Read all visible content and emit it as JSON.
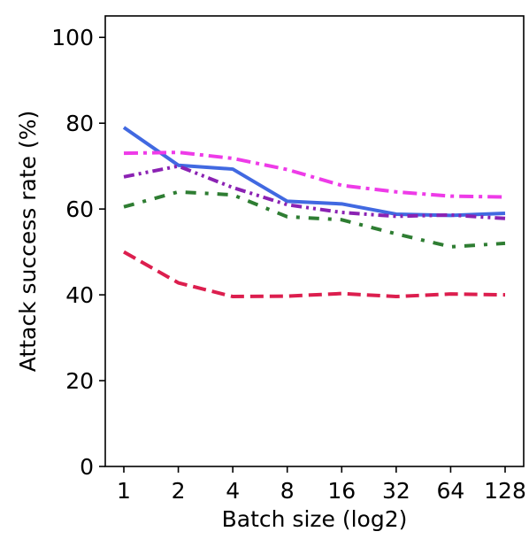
{
  "chart_data": {
    "type": "line",
    "title": "",
    "xlabel": "Batch size (log2)",
    "ylabel": "Attack success rate (%)",
    "x_scale": "log2",
    "categories": [
      "1",
      "2",
      "4",
      "8",
      "16",
      "32",
      "64",
      "128"
    ],
    "x": [
      1,
      2,
      4,
      8,
      16,
      32,
      64,
      128
    ],
    "yticks": [
      "0",
      "20",
      "40",
      "60",
      "80",
      "100"
    ],
    "ylim": [
      0,
      105
    ],
    "grid": false,
    "legend": "none",
    "series": [
      {
        "color": "#4169e1",
        "dash": "solid",
        "values": [
          79,
          70.2,
          69.3,
          61.8,
          61.2,
          58.8,
          58.5,
          59
        ]
      },
      {
        "color": "#ee3be8",
        "dash": "dashdot",
        "values": [
          73,
          73.2,
          71.8,
          69.2,
          65.5,
          64,
          63,
          62.8
        ]
      },
      {
        "color": "#8b22b3",
        "dash": "dashdotdot",
        "values": [
          67.5,
          70,
          65,
          61,
          59.2,
          58.3,
          58.6,
          57.8
        ]
      },
      {
        "color": "#2e7d32",
        "dash": "dashdotsparse",
        "values": [
          60.5,
          64,
          63.3,
          58.2,
          57.5,
          54.2,
          51.2,
          52
        ]
      },
      {
        "color": "#dc1e4e",
        "dash": "dashed",
        "values": [
          50,
          42.8,
          39.6,
          39.7,
          40.3,
          39.6,
          40.2,
          40
        ]
      }
    ]
  }
}
